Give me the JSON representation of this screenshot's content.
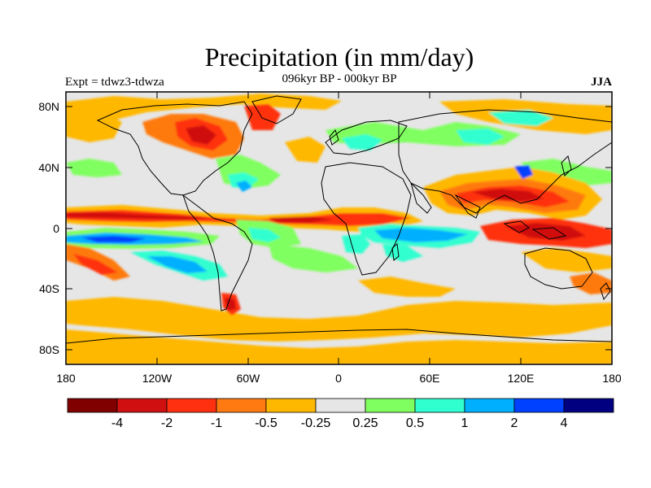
{
  "title": "Precipitation (in mm/day)",
  "subtitle_left": "Expt = tdwz3-tdwza",
  "subtitle_center": "096kyr BP - 000kyr BP",
  "subtitle_right": "JJA",
  "map": {
    "ocean_color": "#e6e6e6",
    "lon_ticks": [
      "180",
      "120W",
      "60W",
      "0",
      "60E",
      "120E",
      "180"
    ],
    "lat_ticks": [
      "80N",
      "40N",
      "0",
      "40S",
      "80S"
    ]
  },
  "colorbar": {
    "colors": [
      "#800000",
      "#d01010",
      "#ff3010",
      "#ff7a10",
      "#ffb800",
      "#e6e6e6",
      "#80ff60",
      "#30ffd0",
      "#00b0ff",
      "#0040ff",
      "#000080"
    ],
    "labels": [
      "-4",
      "-2",
      "-1",
      "-0.5",
      "-0.25",
      "0.25",
      "0.5",
      "1",
      "2",
      "4"
    ]
  }
}
